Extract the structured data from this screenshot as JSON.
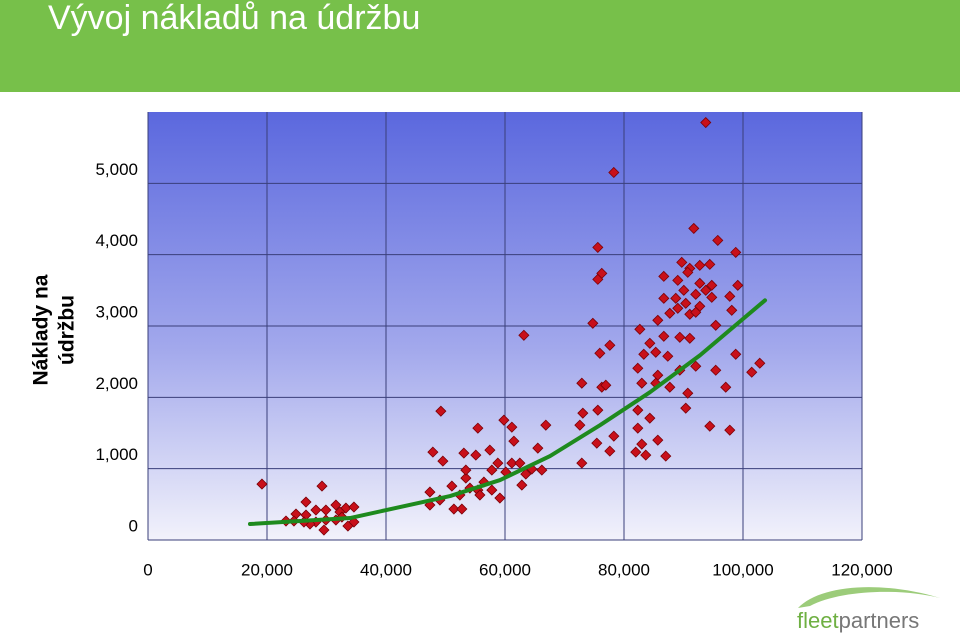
{
  "chart_data": {
    "type": "scatter",
    "title": "Vývoj nákladů na údržbu",
    "y_label": [
      "Náklady na",
      "údržbu"
    ],
    "logo": {
      "part1": "fleet",
      "part2": "partners"
    },
    "xlim": [
      0,
      120000
    ],
    "ylim": [
      0,
      6000
    ],
    "xticks": [
      0,
      {
        "value": 20000,
        "label": "20,000"
      },
      {
        "value": 40000,
        "label": "40,000"
      },
      {
        "value": 60000,
        "label": "60,000"
      },
      {
        "value": 80000,
        "label": "80,000"
      },
      {
        "value": 100000,
        "label": "100,000"
      },
      {
        "value": 120000,
        "label": "120,000"
      }
    ],
    "yticks": [
      0,
      {
        "value": 1000,
        "label": "1,000"
      },
      {
        "value": 2000,
        "label": "2,000"
      },
      {
        "value": 3000,
        "label": "3,000"
      },
      {
        "value": 4000,
        "label": "4,000"
      },
      {
        "value": 5000,
        "label": "5,000"
      }
    ],
    "grid": true,
    "color": "#c8101a",
    "x": [
      19150,
      29240,
      26550,
      24870,
      23190,
      24530,
      26550,
      28220,
      29900,
      31580,
      32260,
      33260,
      34610,
      32590,
      31580,
      29900,
      28220,
      29570,
      34610,
      27220,
      33600,
      26210,
      49220,
      47880,
      49560,
      53090,
      55440,
      55100,
      57460,
      59810,
      61150,
      61490,
      47380,
      49060,
      47380,
      51070,
      52420,
      53420,
      54100,
      51410,
      52750,
      55440,
      56450,
      57790,
      58800,
      60140,
      61150,
      62500,
      62830,
      59140,
      57790,
      55780,
      63500,
      64510,
      65520,
      66190,
      66860,
      63170,
      53420,
      75600,
      78290,
      76270,
      75600,
      74760,
      75940,
      77620,
      72910,
      76270,
      76940,
      73080,
      75600,
      72580,
      72910,
      75430,
      77620,
      78290,
      93740,
      91730,
      95760,
      98780,
      86690,
      89710,
      91060,
      92740,
      94420,
      90720,
      89040,
      92740,
      94750,
      90050,
      92060,
      93740,
      86690,
      88700,
      94750,
      97780,
      99120,
      90380,
      92740,
      89040,
      91060,
      92060,
      87700,
      85680,
      95420,
      98110,
      82660,
      84340,
      86690,
      89380,
      85340,
      83330,
      82320,
      85680,
      87360,
      91060,
      89380,
      92060,
      95420,
      98780,
      82990,
      85340,
      87700,
      90720,
      97100,
      102820,
      101470,
      90380,
      82320,
      84340,
      82320,
      85680,
      82990,
      81980,
      83660,
      87020,
      94420,
      97780
    ],
    "values": [
      784,
      756,
      532,
      364,
      266,
      266,
      350,
      420,
      420,
      490,
      392,
      448,
      462,
      322,
      280,
      280,
      252,
      140,
      252,
      224,
      196,
      252,
      1806,
      1232,
      1106,
      1218,
      1568,
      1190,
      1260,
      1680,
      1582,
      1386,
      672,
      560,
      490,
      756,
      630,
      868,
      728,
      434,
      434,
      700,
      812,
      980,
      1078,
      952,
      1078,
      1078,
      770,
      588,
      700,
      630,
      924,
      994,
      1288,
      980,
      1610,
      2870,
      980,
      4102,
      5152,
      3738,
      3654,
      3038,
      2618,
      2730,
      2198,
      2142,
      2170,
      1778,
      1820,
      1610,
      1078,
      1358,
      1246,
      1456,
      5852,
      4368,
      4200,
      4032,
      3696,
      3892,
      3808,
      3850,
      3864,
      3752,
      3640,
      3598,
      3570,
      3500,
      3444,
      3500,
      3388,
      3388,
      3402,
      3416,
      3570,
      3318,
      3276,
      3248,
      3164,
      3192,
      3178,
      3080,
      3010,
      3220,
      2954,
      2758,
      2856,
      2842,
      2632,
      2604,
      2408,
      2310,
      2576,
      2828,
      2380,
      2436,
      2380,
      2604,
      2198,
      2198,
      2142,
      2058,
      2142,
      2478,
      2352,
      1848,
      1820,
      1708,
      1568,
      1400,
      1344,
      1232,
      1190,
      1176,
      1596,
      1540
    ],
    "trend": {
      "color": "#1e8a1e",
      "x": [
        17140,
        33950,
        50760,
        59170,
        67570,
        75970,
        84370,
        92780,
        103700
      ],
      "y": [
        224,
        308,
        616,
        840,
        1176,
        1610,
        2072,
        2590,
        3360
      ]
    }
  }
}
